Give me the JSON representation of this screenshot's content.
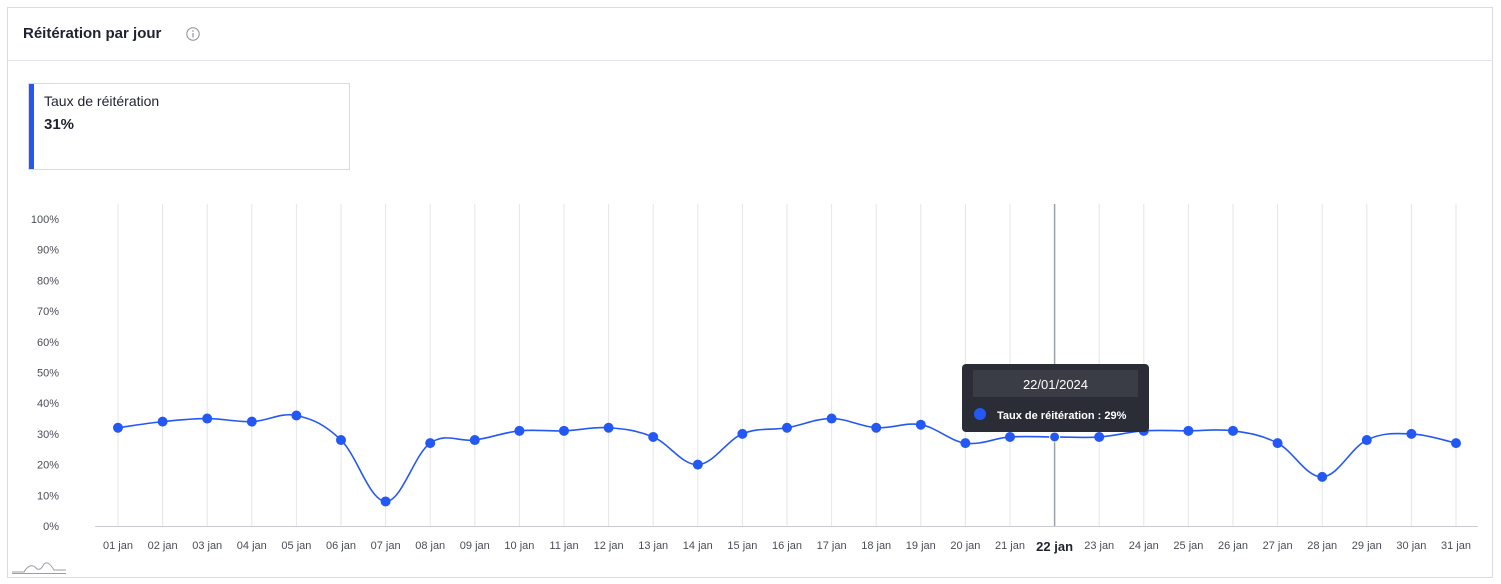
{
  "header": {
    "title": "Réitération par jour",
    "info_icon": "info-icon"
  },
  "kpi": {
    "label": "Taux de réitération",
    "value": "31%",
    "accent": "#2458f5"
  },
  "tooltip": {
    "date": "22/01/2024",
    "series_label": "Taux de réitération : 29%",
    "category_index": 21
  },
  "colors": {
    "series": "#2458f5",
    "grid": "#e3e5ea",
    "tooltip_bg": "#2b2d36",
    "tooltip_header_bg": "#3a3c46"
  },
  "chart_data": {
    "type": "line",
    "title": "",
    "xlabel": "",
    "ylabel": "",
    "ylim": [
      0,
      100
    ],
    "y_ticks": [
      "0%",
      "10%",
      "20%",
      "30%",
      "40%",
      "50%",
      "60%",
      "70%",
      "80%",
      "90%",
      "100%"
    ],
    "categories": [
      "01 jan",
      "02 jan",
      "03 jan",
      "04 jan",
      "05 jan",
      "06 jan",
      "07 jan",
      "08 jan",
      "09 jan",
      "10 jan",
      "11 jan",
      "12 jan",
      "13 jan",
      "14 jan",
      "15 jan",
      "16 jan",
      "17 jan",
      "18 jan",
      "19 jan",
      "20 jan",
      "21 jan",
      "22 jan",
      "23 jan",
      "24 jan",
      "25 jan",
      "26 jan",
      "27 jan",
      "28 jan",
      "29 jan",
      "30 jan",
      "31 jan"
    ],
    "series": [
      {
        "values": [
          32,
          34,
          35,
          34,
          36,
          28,
          8,
          27,
          28,
          31,
          31,
          32,
          29,
          20,
          30,
          32,
          35,
          32,
          33,
          27,
          29,
          29,
          29,
          31,
          31,
          31,
          27,
          16,
          28,
          30,
          27
        ]
      }
    ],
    "grid": true,
    "legend": "none"
  }
}
